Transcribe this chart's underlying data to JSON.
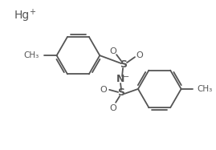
{
  "background_color": "#ffffff",
  "line_color": "#555555",
  "line_width": 1.3,
  "font_size": 9,
  "hg_label": "Hg",
  "hg_plus": "+",
  "n_label": "N",
  "n_minus": "−",
  "s_label": "S",
  "o_label": "O",
  "figsize": [
    2.69,
    1.87
  ],
  "dpi": 100
}
